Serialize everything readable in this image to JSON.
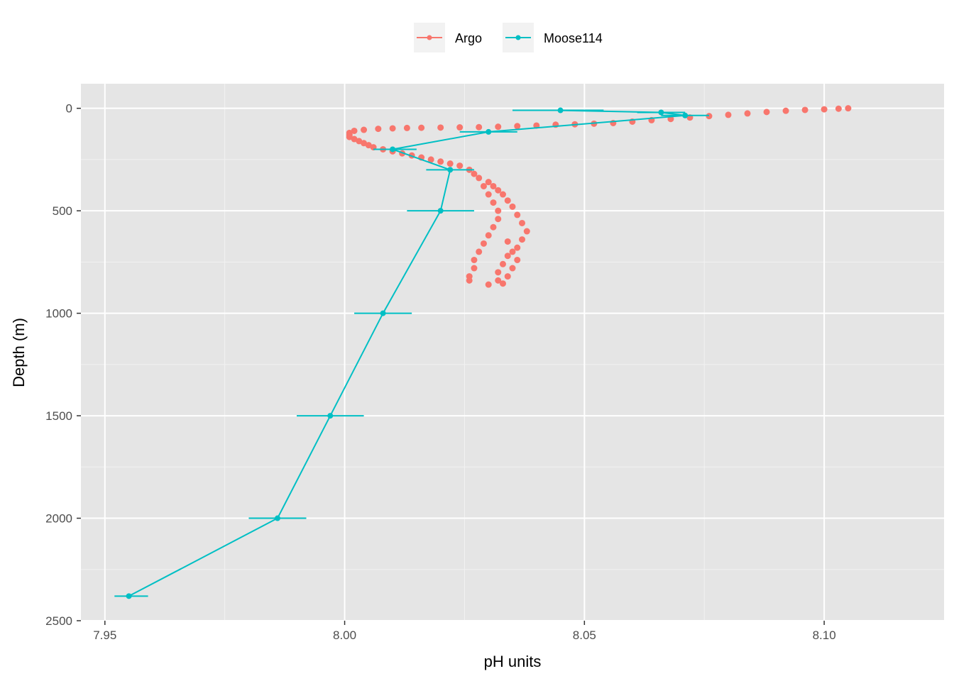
{
  "chart_data": {
    "type": "scatter",
    "xlabel": "pH units",
    "ylabel": "Depth (m)",
    "xlim": [
      7.945,
      8.125
    ],
    "ylim": [
      2500,
      -120
    ],
    "y_reversed": true,
    "x_ticks": [
      7.95,
      8.0,
      8.05,
      8.1
    ],
    "x_tick_labels": [
      "7.95",
      "8.00",
      "8.05",
      "8.10"
    ],
    "y_ticks": [
      0,
      500,
      1000,
      1500,
      2000,
      2500
    ],
    "y_tick_labels": [
      "0",
      "500",
      "1000",
      "1500",
      "2000",
      "2500"
    ],
    "grid": true,
    "legend_position": "top",
    "background": "#e5e5e5",
    "series": [
      {
        "name": "Argo",
        "color": "#f8766d",
        "style": "points",
        "points": [
          {
            "x": 8.105,
            "y": 0
          },
          {
            "x": 8.103,
            "y": 2
          },
          {
            "x": 8.1,
            "y": 5
          },
          {
            "x": 8.096,
            "y": 8
          },
          {
            "x": 8.092,
            "y": 12
          },
          {
            "x": 8.088,
            "y": 18
          },
          {
            "x": 8.084,
            "y": 25
          },
          {
            "x": 8.08,
            "y": 32
          },
          {
            "x": 8.076,
            "y": 38
          },
          {
            "x": 8.072,
            "y": 45
          },
          {
            "x": 8.068,
            "y": 52
          },
          {
            "x": 8.064,
            "y": 58
          },
          {
            "x": 8.06,
            "y": 65
          },
          {
            "x": 8.056,
            "y": 72
          },
          {
            "x": 8.052,
            "y": 75
          },
          {
            "x": 8.048,
            "y": 78
          },
          {
            "x": 8.044,
            "y": 80
          },
          {
            "x": 8.04,
            "y": 84
          },
          {
            "x": 8.036,
            "y": 87
          },
          {
            "x": 8.032,
            "y": 90
          },
          {
            "x": 8.028,
            "y": 92
          },
          {
            "x": 8.024,
            "y": 93
          },
          {
            "x": 8.02,
            "y": 94
          },
          {
            "x": 8.016,
            "y": 95
          },
          {
            "x": 8.013,
            "y": 96
          },
          {
            "x": 8.01,
            "y": 98
          },
          {
            "x": 8.007,
            "y": 100
          },
          {
            "x": 8.004,
            "y": 105
          },
          {
            "x": 8.002,
            "y": 110
          },
          {
            "x": 8.001,
            "y": 120
          },
          {
            "x": 8.001,
            "y": 130
          },
          {
            "x": 8.001,
            "y": 140
          },
          {
            "x": 8.002,
            "y": 150
          },
          {
            "x": 8.003,
            "y": 160
          },
          {
            "x": 8.004,
            "y": 170
          },
          {
            "x": 8.005,
            "y": 180
          },
          {
            "x": 8.006,
            "y": 190
          },
          {
            "x": 8.008,
            "y": 200
          },
          {
            "x": 8.01,
            "y": 210
          },
          {
            "x": 8.012,
            "y": 220
          },
          {
            "x": 8.014,
            "y": 230
          },
          {
            "x": 8.016,
            "y": 240
          },
          {
            "x": 8.018,
            "y": 250
          },
          {
            "x": 8.02,
            "y": 260
          },
          {
            "x": 8.022,
            "y": 270
          },
          {
            "x": 8.024,
            "y": 280
          },
          {
            "x": 8.026,
            "y": 300
          },
          {
            "x": 8.027,
            "y": 320
          },
          {
            "x": 8.028,
            "y": 340
          },
          {
            "x": 8.03,
            "y": 360
          },
          {
            "x": 8.031,
            "y": 380
          },
          {
            "x": 8.032,
            "y": 400
          },
          {
            "x": 8.033,
            "y": 420
          },
          {
            "x": 8.034,
            "y": 450
          },
          {
            "x": 8.035,
            "y": 480
          },
          {
            "x": 8.036,
            "y": 520
          },
          {
            "x": 8.037,
            "y": 560
          },
          {
            "x": 8.038,
            "y": 600
          },
          {
            "x": 8.037,
            "y": 640
          },
          {
            "x": 8.036,
            "y": 680
          },
          {
            "x": 8.034,
            "y": 720
          },
          {
            "x": 8.033,
            "y": 760
          },
          {
            "x": 8.032,
            "y": 800
          },
          {
            "x": 8.032,
            "y": 840
          },
          {
            "x": 8.029,
            "y": 380
          },
          {
            "x": 8.03,
            "y": 420
          },
          {
            "x": 8.031,
            "y": 460
          },
          {
            "x": 8.032,
            "y": 500
          },
          {
            "x": 8.032,
            "y": 540
          },
          {
            "x": 8.031,
            "y": 580
          },
          {
            "x": 8.03,
            "y": 620
          },
          {
            "x": 8.029,
            "y": 660
          },
          {
            "x": 8.028,
            "y": 700
          },
          {
            "x": 8.027,
            "y": 740
          },
          {
            "x": 8.027,
            "y": 780
          },
          {
            "x": 8.026,
            "y": 820
          },
          {
            "x": 8.026,
            "y": 840
          },
          {
            "x": 8.03,
            "y": 860
          },
          {
            "x": 8.033,
            "y": 855
          },
          {
            "x": 8.034,
            "y": 820
          },
          {
            "x": 8.035,
            "y": 780
          },
          {
            "x": 8.036,
            "y": 740
          },
          {
            "x": 8.035,
            "y": 700
          },
          {
            "x": 8.034,
            "y": 650
          }
        ]
      },
      {
        "name": "Moose114",
        "color": "#00bfc4",
        "style": "line-points-errorbars",
        "points": [
          {
            "x": 8.045,
            "y": 10,
            "xmin": 8.035,
            "xmax": 8.054
          },
          {
            "x": 8.066,
            "y": 20,
            "xmin": 8.061,
            "xmax": 8.071
          },
          {
            "x": 8.071,
            "y": 35,
            "xmin": 8.066,
            "xmax": 8.076
          },
          {
            "x": 8.03,
            "y": 115,
            "xmin": 8.024,
            "xmax": 8.036
          },
          {
            "x": 8.01,
            "y": 200,
            "xmin": 8.006,
            "xmax": 8.015
          },
          {
            "x": 8.022,
            "y": 300,
            "xmin": 8.017,
            "xmax": 8.027
          },
          {
            "x": 8.02,
            "y": 500,
            "xmin": 8.013,
            "xmax": 8.027
          },
          {
            "x": 8.008,
            "y": 1000,
            "xmin": 8.002,
            "xmax": 8.014
          },
          {
            "x": 7.997,
            "y": 1500,
            "xmin": 7.99,
            "xmax": 8.004
          },
          {
            "x": 7.986,
            "y": 2000,
            "xmin": 7.98,
            "xmax": 7.992
          },
          {
            "x": 7.955,
            "y": 2380,
            "xmin": 7.952,
            "xmax": 7.959
          }
        ]
      }
    ]
  }
}
